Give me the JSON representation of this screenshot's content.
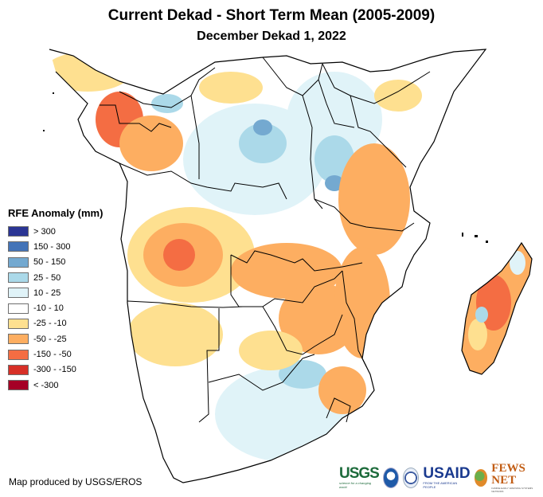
{
  "title": "Current Dekad - Short Term Mean (2005-2009)",
  "subtitle": "December Dekad 1, 2022",
  "legend": {
    "title": "RFE Anomaly (mm)",
    "items": [
      {
        "label": "> 300",
        "color": "#2b3594"
      },
      {
        "label": "150 - 300",
        "color": "#4474b8"
      },
      {
        "label": "50 - 150",
        "color": "#74a9d0"
      },
      {
        "label": "25 - 50",
        "color": "#abd9e9"
      },
      {
        "label": "10 - 25",
        "color": "#e0f3f8"
      },
      {
        "label": "-10 - 10",
        "color": "#ffffff"
      },
      {
        "label": "-25 - -10",
        "color": "#fee090"
      },
      {
        "label": "-50 - -25",
        "color": "#fdae61"
      },
      {
        "label": "-150 - -50",
        "color": "#f46d43"
      },
      {
        "label": "-300 - -150",
        "color": "#d73027"
      },
      {
        "label": "< -300",
        "color": "#a50026"
      }
    ]
  },
  "credit": "Map produced by USGS/EROS",
  "logos": {
    "usgs": "USGS",
    "usgs_tagline": "science for a changing world",
    "noaa": "NOAA",
    "usaid": "USAID",
    "usaid_tagline": "FROM THE AMERICAN PEOPLE",
    "fews": "FEWS NET",
    "fews_tagline": "FAMINE EARLY WARNING SYSTEMS NETWORK"
  },
  "map": {
    "region": "Central and Southern Africa with Madagascar",
    "variable": "Rainfall estimate anomaly",
    "units": "mm"
  }
}
